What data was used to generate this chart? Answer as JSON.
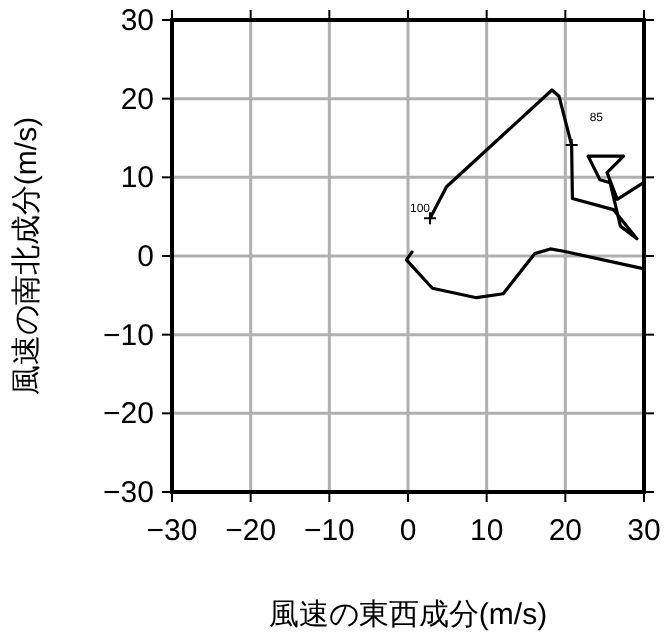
{
  "chart_data": {
    "type": "line",
    "xlabel": "風速の東西成分(m/s)",
    "ylabel": "風速の南北成分(m/s)",
    "xlim": [
      -30,
      30
    ],
    "ylim": [
      -30,
      30
    ],
    "xticks": [
      {
        "value": -30,
        "label": "−30"
      },
      {
        "value": -20,
        "label": "−20"
      },
      {
        "value": -10,
        "label": "−10"
      },
      0,
      10,
      20,
      30
    ],
    "yticks": [
      {
        "value": -30,
        "label": "−30"
      },
      {
        "value": -20,
        "label": "−20"
      },
      {
        "value": -10,
        "label": "−10"
      },
      0,
      10,
      20,
      30
    ],
    "grid": true,
    "series": [
      {
        "color": "#000000",
        "x": [
          2.8,
          4.9,
          18.3,
          19.2,
          20.8,
          20.9,
          26.1,
          29.1,
          27.0,
          25.7,
          24.4,
          22.9,
          27.4,
          25.3,
          26.6,
          29.9
        ],
        "values": [
          4.8,
          8.8,
          21.1,
          20.3,
          14.1,
          7.3,
          5.9,
          2.2,
          3.8,
          9.3,
          9.7,
          12.7,
          12.7,
          10.6,
          7.2,
          9.3
        ]
      },
      {
        "color": "#000000",
        "x": [
          0.5,
          -0.2,
          3.1,
          8.7,
          12.1,
          16.1,
          18.1,
          19.8,
          29.9
        ],
        "values": [
          0.5,
          -0.5,
          -4.1,
          -5.3,
          -4.8,
          0.3,
          0.9,
          0.6,
          -1.6
        ]
      }
    ],
    "annotations": [
      {
        "text": "100",
        "x": 2.8,
        "y": 4.8
      },
      {
        "text": "85",
        "x": 20.8,
        "y": 14.1
      }
    ]
  }
}
